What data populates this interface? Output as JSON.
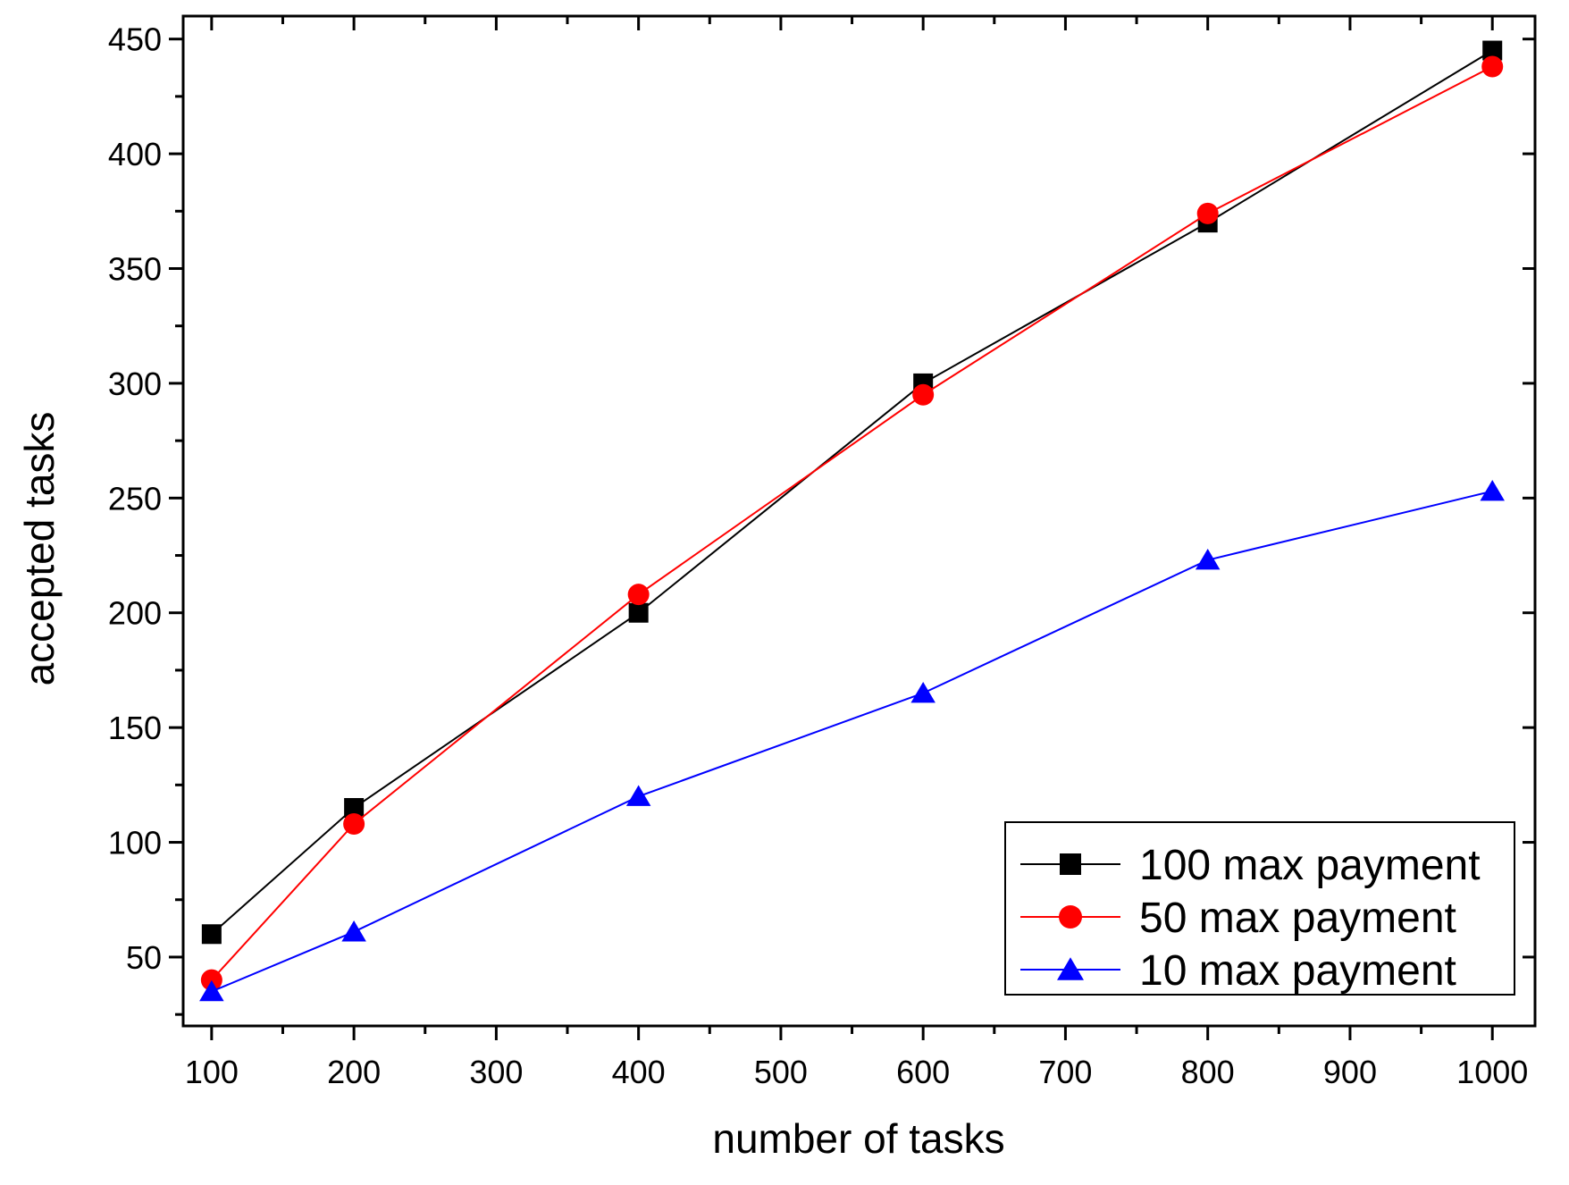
{
  "chart_data": {
    "type": "line",
    "xlabel": "number of tasks",
    "ylabel": "accepted tasks",
    "xlim": [
      80,
      1030
    ],
    "ylim": [
      20,
      460
    ],
    "x_ticks": [
      100,
      200,
      300,
      400,
      500,
      600,
      700,
      800,
      900,
      1000
    ],
    "y_ticks": [
      50,
      100,
      150,
      200,
      250,
      300,
      350,
      400,
      450
    ],
    "grid": false,
    "legend_position": "bottom-right",
    "x": [
      100,
      200,
      400,
      600,
      800,
      1000
    ],
    "series": [
      {
        "name": "100 max payment",
        "color": "#000000",
        "marker": "square",
        "values": [
          60,
          115,
          200,
          300,
          370,
          445
        ]
      },
      {
        "name": "50 max payment",
        "color": "#ff0000",
        "marker": "circle",
        "values": [
          40,
          108,
          208,
          295,
          374,
          438
        ]
      },
      {
        "name": "10 max payment",
        "color": "#0000ff",
        "marker": "triangle",
        "values": [
          35,
          61,
          120,
          165,
          223,
          253
        ]
      }
    ]
  }
}
